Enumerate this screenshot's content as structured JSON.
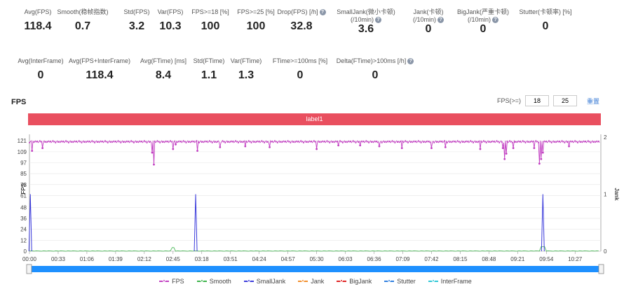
{
  "metrics_row1": [
    {
      "label": "Avg(FPS)",
      "value": "118.4",
      "help": false
    },
    {
      "label": "Smooth(稳帧指数)",
      "value": "0.7",
      "help": false
    },
    {
      "label": "Std(FPS)",
      "value": "3.2",
      "help": false
    },
    {
      "label": "Var(FPS)",
      "value": "10.3",
      "help": false
    },
    {
      "label": "FPS>=18 [%]",
      "value": "100",
      "help": false
    },
    {
      "label": "FPS>=25 [%]",
      "value": "100",
      "help": false
    },
    {
      "label": "Drop(FPS) [/h]",
      "value": "32.8",
      "help": true
    },
    {
      "label": "SmallJank(微小卡顿)",
      "label2": "(/10min)",
      "value": "3.6",
      "help": true
    },
    {
      "label": "Jank(卡顿)",
      "label2": "(/10min)",
      "value": "0",
      "help": true
    },
    {
      "label": "BigJank(严重卡顿)",
      "label2": "(/10min)",
      "value": "0",
      "help": true
    },
    {
      "label": "Stutter(卡顿率) [%]",
      "value": "0",
      "help": false
    }
  ],
  "metrics_row2": [
    {
      "label": "Avg(InterFrame)",
      "value": "0",
      "help": false
    },
    {
      "label": "Avg(FPS+InterFrame)",
      "value": "118.4",
      "help": false
    },
    {
      "label": "Avg(FTime) [ms]",
      "value": "8.4",
      "help": false
    },
    {
      "label": "Std(FTime)",
      "value": "1.1",
      "help": false
    },
    {
      "label": "Var(FTime)",
      "value": "1.3",
      "help": false
    },
    {
      "label": "FTime>=100ms [%]",
      "value": "0",
      "help": false
    },
    {
      "label": "Delta(FTime)>100ms [/h]",
      "value": "0",
      "help": true
    }
  ],
  "section_title": "FPS",
  "fps_filter": {
    "label": "FPS(>=)",
    "v1": "18",
    "v2": "25",
    "reset": "重置"
  },
  "label_bar": "label1",
  "colors": {
    "fps": "#c23fc2",
    "smooth": "#3cb34a",
    "smalljank": "#3b3bdb",
    "jank": "#f28e2b",
    "bigjank": "#e02424",
    "stutter": "#2f7fe0",
    "interframe": "#2ec7d6",
    "labelbar": "#e94f5f"
  },
  "chart_data": {
    "type": "line",
    "xlabel": "",
    "ylabel": "FPS",
    "y2label": "Jank",
    "y_ticks": [
      0,
      12,
      24,
      36,
      48,
      61,
      73,
      85,
      97,
      109,
      121
    ],
    "y2_ticks": [
      0,
      1,
      2
    ],
    "x_ticks": [
      "00:00",
      "00:33",
      "01:06",
      "01:39",
      "02:12",
      "02:45",
      "03:18",
      "03:51",
      "04:24",
      "04:57",
      "05:30",
      "06:03",
      "06:36",
      "07:09",
      "07:42",
      "08:15",
      "08:48",
      "09:21",
      "09:54",
      "10:27"
    ],
    "x_seconds": [
      0,
      33,
      66,
      99,
      132,
      165,
      198,
      231,
      264,
      297,
      330,
      363,
      396,
      429,
      462,
      495,
      528,
      561,
      594,
      627
    ],
    "x_max": 655,
    "fps_baseline": 120,
    "fps_dips": [
      [
        3,
        110
      ],
      [
        15,
        113
      ],
      [
        141,
        108
      ],
      [
        143,
        95
      ],
      [
        165,
        112
      ],
      [
        168,
        117
      ],
      [
        193,
        110
      ],
      [
        219,
        114
      ],
      [
        248,
        115
      ],
      [
        276,
        114
      ],
      [
        330,
        112
      ],
      [
        355,
        116
      ],
      [
        380,
        116
      ],
      [
        402,
        115
      ],
      [
        428,
        113
      ],
      [
        462,
        113
      ],
      [
        478,
        114
      ],
      [
        518,
        112
      ],
      [
        544,
        113
      ],
      [
        546,
        101
      ],
      [
        548,
        107
      ],
      [
        556,
        113
      ],
      [
        580,
        113
      ],
      [
        586,
        96
      ],
      [
        588,
        101
      ],
      [
        590,
        108
      ],
      [
        620,
        115
      ]
    ],
    "smalljank_spikes": [
      [
        1,
        1
      ],
      [
        191,
        1
      ],
      [
        590,
        1
      ]
    ],
    "legend": [
      "FPS",
      "Smooth",
      "SmallJank",
      "Jank",
      "BigJank",
      "Stutter",
      "InterFrame"
    ]
  }
}
